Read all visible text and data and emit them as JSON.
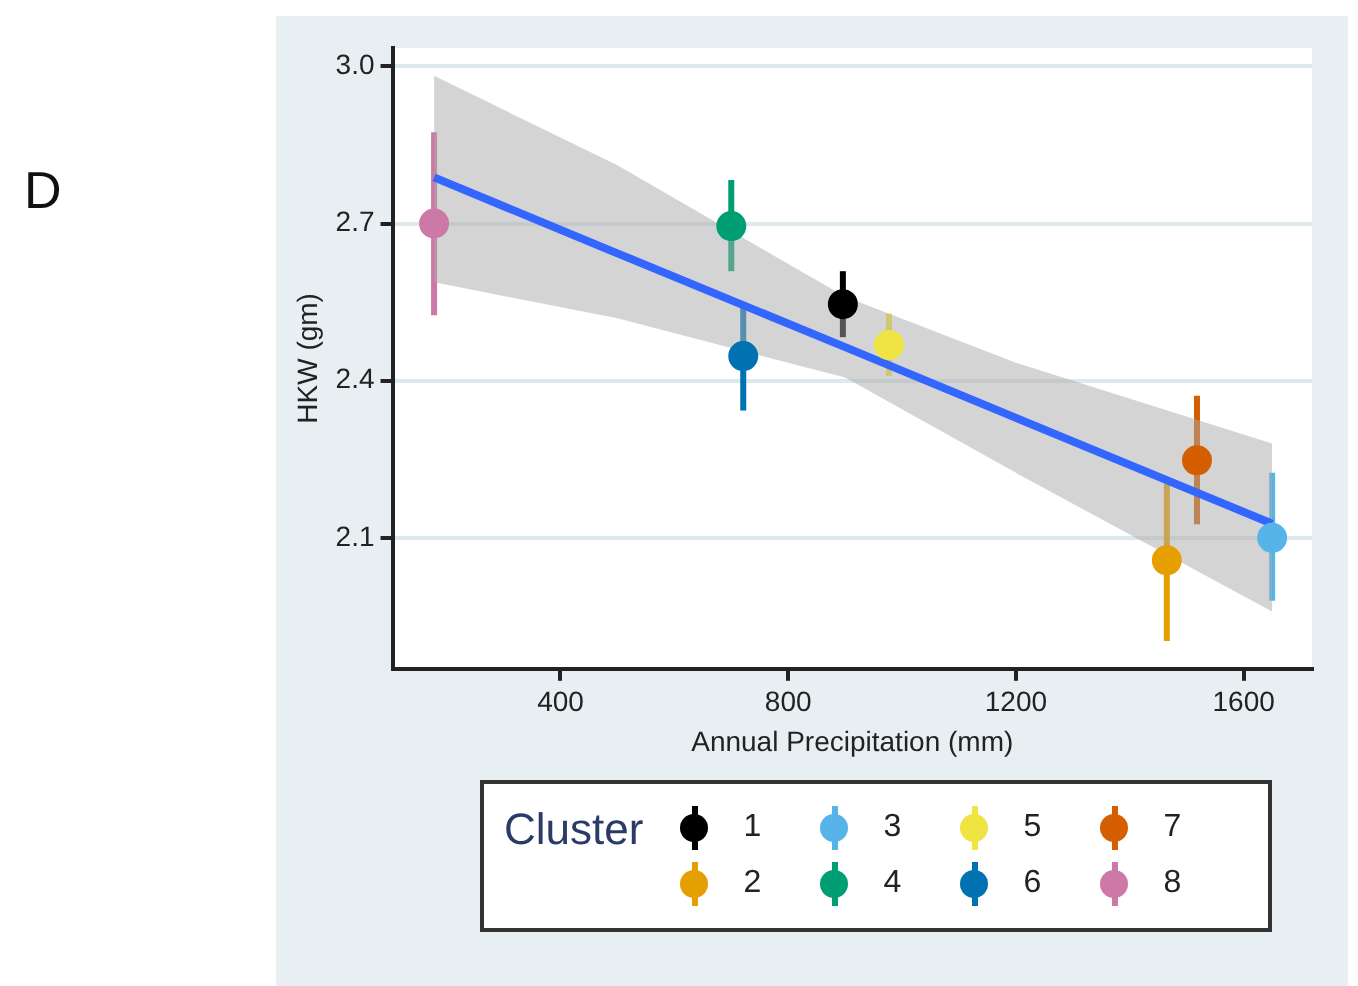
{
  "chart_data": {
    "type": "scatter",
    "xlabel": "Annual Precipitation (mm)",
    "ylabel": "HKW (gm)",
    "legend_title": "Cluster",
    "annotations": [
      "D"
    ],
    "xlim": [
      105,
      1720
    ],
    "ylim": [
      1.85,
      3.035
    ],
    "xticks": [
      400,
      800,
      1200,
      1600
    ],
    "yticks": [
      {
        "value": 2.1,
        "label": "2.1"
      },
      {
        "value": 2.4,
        "label": "2.4"
      },
      {
        "value": 2.7,
        "label": "2.7"
      },
      {
        "value": 3,
        "label": "3.0"
      }
    ],
    "grid": "y",
    "legend": "bottom",
    "marker": "circle",
    "series": [
      {
        "type": "line",
        "marker": "none",
        "color": "#3366ff",
        "x": [
          178,
          500,
          900,
          1200,
          1650
        ],
        "values": [
          2.788,
          2.643,
          2.464,
          2.329,
          2.127
        ],
        "lower": [
          2.588,
          2.519,
          2.406,
          2.224,
          1.959
        ],
        "upper": [
          2.982,
          2.811,
          2.56,
          2.434,
          2.28
        ]
      },
      {
        "name": "1",
        "color": "#000000",
        "x": [
          896
        ],
        "values": [
          2.546
        ],
        "errors": [
          [
            2.483,
            2.609
          ]
        ]
      },
      {
        "name": "2",
        "color": "#e69f00",
        "x": [
          1465
        ],
        "values": [
          2.057
        ],
        "errors": [
          [
            1.903,
            2.203
          ]
        ]
      },
      {
        "name": "3",
        "color": "#56b4e9",
        "x": [
          1650
        ],
        "values": [
          2.1
        ],
        "errors": [
          [
            1.98,
            2.224
          ]
        ]
      },
      {
        "name": "4",
        "color": "#009e73",
        "x": [
          700
        ],
        "values": [
          2.695
        ],
        "errors": [
          [
            2.609,
            2.783
          ]
        ]
      },
      {
        "name": "5",
        "color": "#f0e442",
        "x": [
          977
        ],
        "values": [
          2.468
        ],
        "errors": [
          [
            2.409,
            2.528
          ]
        ]
      },
      {
        "name": "6",
        "color": "#0072b2",
        "x": [
          721
        ],
        "values": [
          2.447
        ],
        "errors": [
          [
            2.343,
            2.546
          ]
        ]
      },
      {
        "name": "7",
        "color": "#d55e00",
        "x": [
          1518
        ],
        "values": [
          2.248
        ],
        "errors": [
          [
            2.126,
            2.371
          ]
        ]
      },
      {
        "name": "8",
        "color": "#cc79a7",
        "x": [
          178
        ],
        "values": [
          2.7
        ],
        "errors": [
          [
            2.525,
            2.874
          ]
        ]
      }
    ]
  }
}
